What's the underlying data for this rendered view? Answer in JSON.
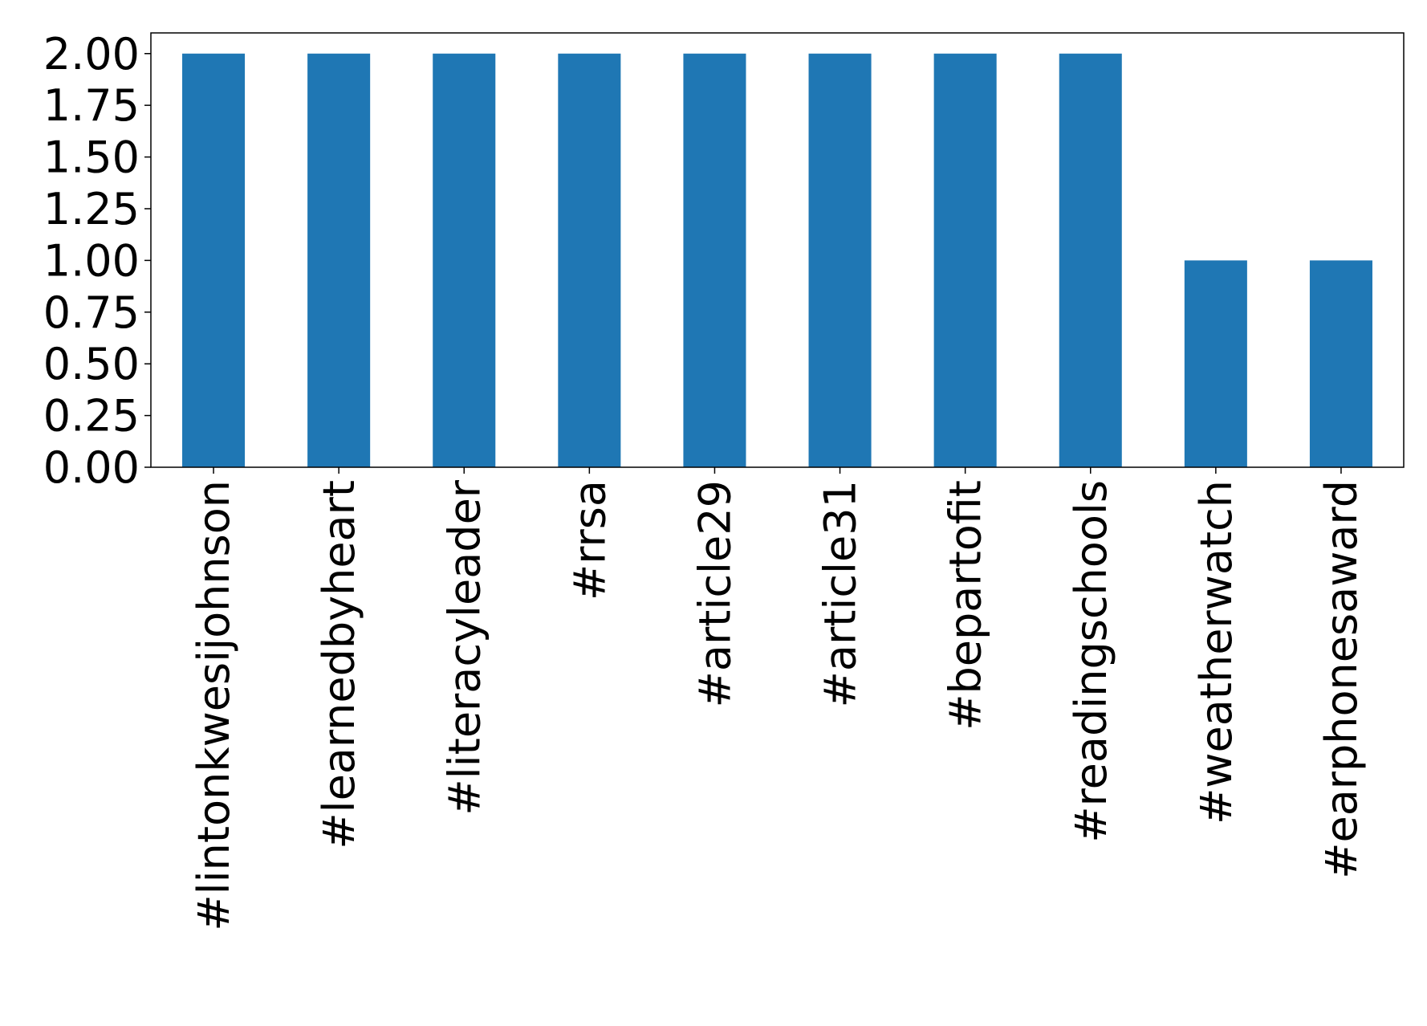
{
  "chart_data": {
    "type": "bar",
    "categories": [
      "#lintonkwesijohnson",
      "#learnedbyheart",
      "#literacyleader",
      "#rrsa",
      "#article29",
      "#article31",
      "#bepartofit",
      "#readingschools",
      "#weatherwatch",
      "#earphonesaward"
    ],
    "values": [
      2,
      2,
      2,
      2,
      2,
      2,
      2,
      2,
      1,
      1
    ],
    "color": "#1f77b4",
    "ylim": [
      0,
      2.1
    ],
    "yticks": [
      {
        "value": 0,
        "label": "0.00"
      },
      {
        "value": 0.25,
        "label": "0.25"
      },
      {
        "value": 0.5,
        "label": "0.50"
      },
      {
        "value": 0.75,
        "label": "0.75"
      },
      {
        "value": 1,
        "label": "1.00"
      },
      {
        "value": 1.25,
        "label": "1.25"
      },
      {
        "value": 1.5,
        "label": "1.50"
      },
      {
        "value": 1.75,
        "label": "1.75"
      },
      {
        "value": 2,
        "label": "2.00"
      }
    ],
    "grid": false
  }
}
